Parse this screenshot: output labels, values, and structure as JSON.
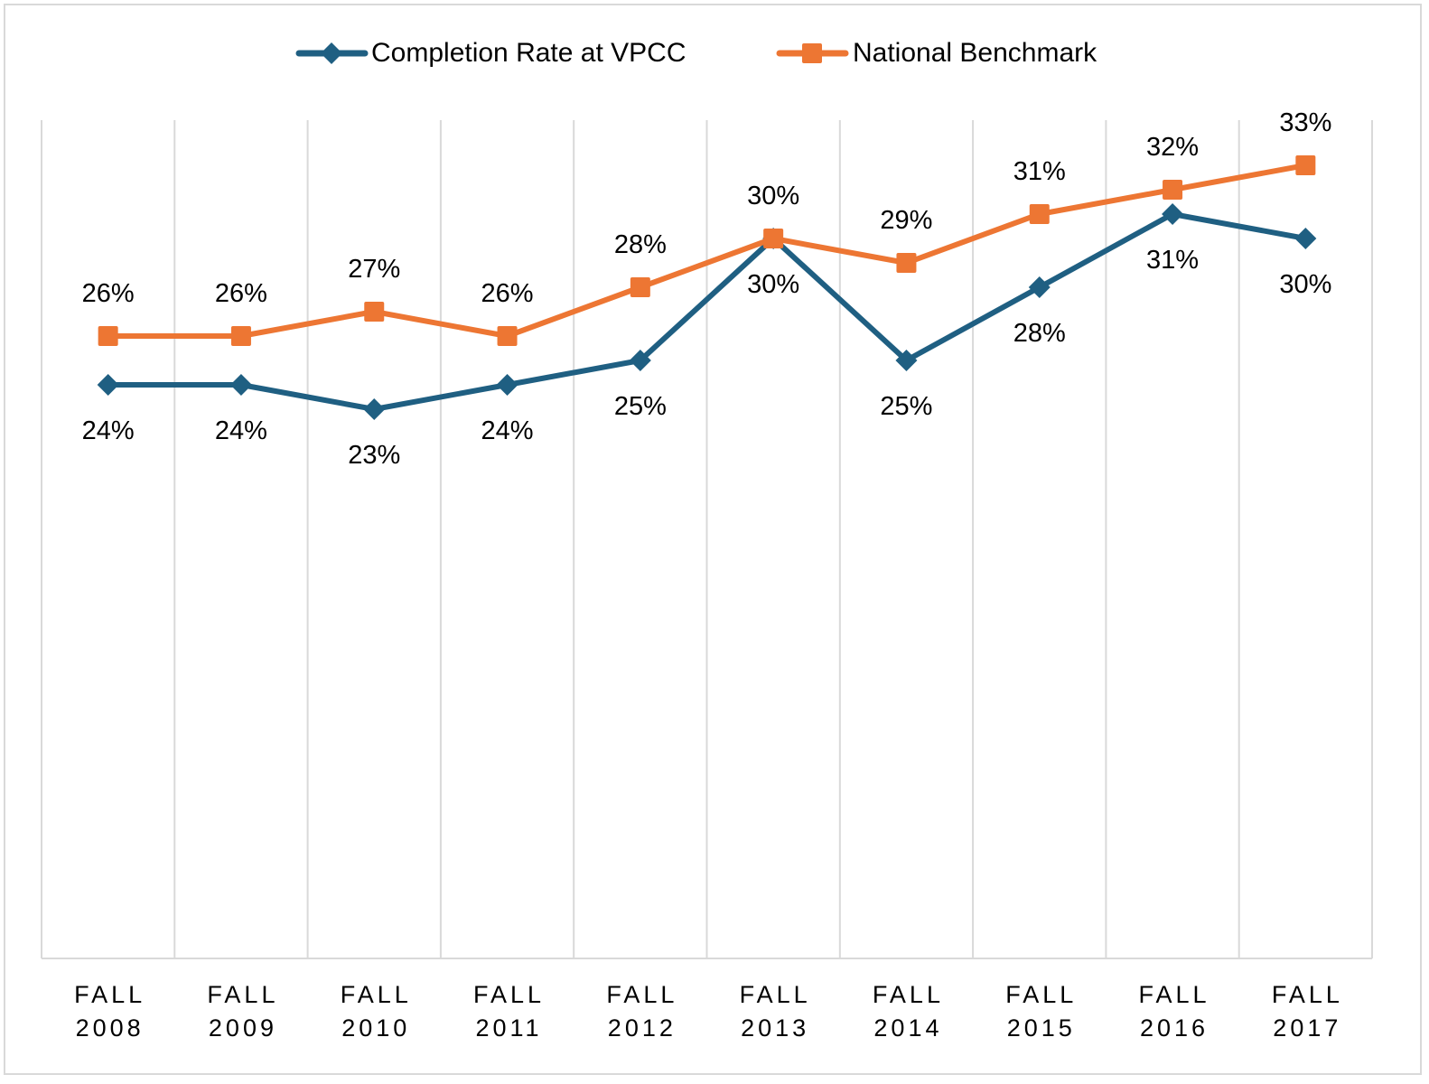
{
  "chart_data": {
    "type": "line",
    "title": "",
    "xlabel": "",
    "ylabel": "",
    "categories": [
      [
        "FALL",
        "2008"
      ],
      [
        "FALL",
        "2009"
      ],
      [
        "FALL",
        "2010"
      ],
      [
        "FALL",
        "2011"
      ],
      [
        "FALL",
        "2012"
      ],
      [
        "FALL",
        "2013"
      ],
      [
        "FALL",
        "2014"
      ],
      [
        "FALL",
        "2015"
      ],
      [
        "FALL",
        "2016"
      ],
      [
        "FALL",
        "2017"
      ]
    ],
    "ylim": [
      0,
      35
    ],
    "grid": "vertical",
    "legend": "top-center",
    "series": [
      {
        "name": "Completion Rate at VPCC",
        "color": "#1f5f82",
        "marker": "diamond",
        "label_position": "below",
        "values": [
          24,
          24,
          23,
          24,
          25,
          30,
          25,
          28,
          31,
          30
        ],
        "labels": [
          "24%",
          "24%",
          "23%",
          "24%",
          "25%",
          "30%",
          "25%",
          "28%",
          "31%",
          "30%"
        ]
      },
      {
        "name": "National Benchmark",
        "color": "#ed7633",
        "marker": "square",
        "label_position": "above",
        "values": [
          26,
          26,
          27,
          26,
          28,
          30,
          29,
          31,
          32,
          33
        ],
        "labels": [
          "26%",
          "26%",
          "27%",
          "26%",
          "28%",
          "30%",
          "29%",
          "31%",
          "32%",
          "33%"
        ]
      }
    ]
  }
}
